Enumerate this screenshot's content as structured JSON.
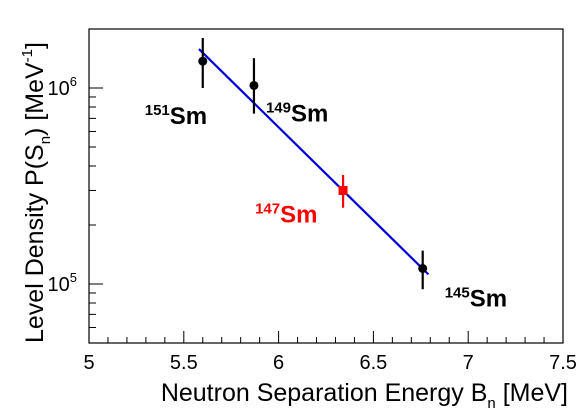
{
  "chart_data": {
    "type": "scatter",
    "xlabel": "Neutron Separation Energy B",
    "xlabel_sub": "n",
    "xlabel_unit": "[MeV]",
    "ylabel": "Level Density P(S",
    "ylabel_sub": "n",
    "ylabel_tail": ") [MeV",
    "ylabel_sup": "-1",
    "ylabel_close": "]",
    "xlim": [
      5,
      7.5
    ],
    "ylim": [
      50000,
      2000000
    ],
    "yscale": "log",
    "grid": false,
    "x_ticks": [
      {
        "value": 5,
        "label": "5"
      },
      {
        "value": 5.5,
        "label": "5.5"
      },
      {
        "value": 6,
        "label": "6"
      },
      {
        "value": 6.5,
        "label": "6.5"
      },
      {
        "value": 7,
        "label": "7"
      },
      {
        "value": 7.5,
        "label": "7.5"
      }
    ],
    "y_ticks": [
      {
        "value": 100000,
        "base": "10",
        "exp": "5"
      },
      {
        "value": 1000000,
        "base": "10",
        "exp": "6"
      }
    ],
    "points": [
      {
        "mass": "151",
        "element": "Sm",
        "x": 5.6,
        "y": 1370000,
        "y_low": 1000000,
        "y_high": 1800000,
        "color": "#000000",
        "marker": "circle"
      },
      {
        "mass": "149",
        "element": "Sm",
        "x": 5.87,
        "y": 1030000,
        "y_low": 740000,
        "y_high": 1420000,
        "color": "#000000",
        "marker": "circle"
      },
      {
        "mass": "147",
        "element": "Sm",
        "x": 6.34,
        "y": 300000,
        "y_low": 245000,
        "y_high": 360000,
        "color": "#ff0000",
        "marker": "square"
      },
      {
        "mass": "145",
        "element": "Sm",
        "x": 6.76,
        "y": 120000,
        "y_low": 94000,
        "y_high": 148000,
        "color": "#000000",
        "marker": "circle"
      }
    ],
    "fit_line": {
      "x": [
        5.58,
        6.79
      ],
      "y": [
        1580000,
        112000
      ],
      "color": "#0000dd"
    }
  }
}
